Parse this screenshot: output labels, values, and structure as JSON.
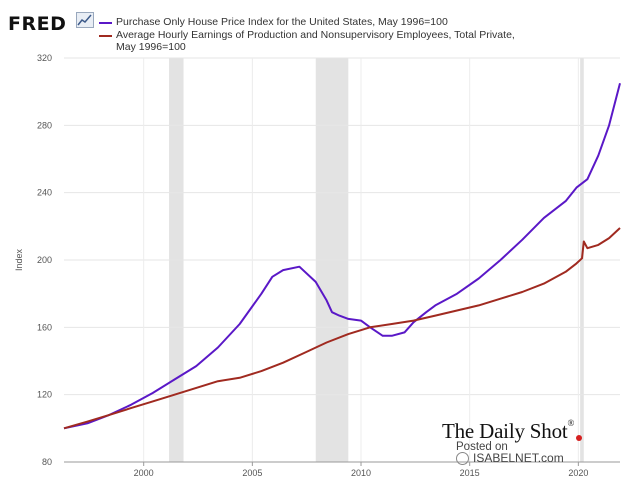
{
  "header": {
    "logo_text": "FRED",
    "logo_icon": "trend-line-icon"
  },
  "legend": [
    {
      "label": "Purchase Only House Price Index for the United States, May 1996=100",
      "color": "#5a18c7"
    },
    {
      "label": "Average Hourly Earnings of Production and Nonsupervisory Employees, Total Private,",
      "label2": "May 1996=100",
      "color": "#a02a20"
    }
  ],
  "watermark": {
    "brand": "The Daily Shot",
    "registered": "®",
    "posted_on": "Posted on",
    "site": "ISABELNET.com",
    "globe_icon": "globe-icon"
  },
  "chart_data": {
    "type": "line",
    "ylabel": "Index",
    "ylim": [
      80,
      320
    ],
    "yticks": [
      80,
      120,
      160,
      200,
      240,
      280,
      320
    ],
    "xlim": [
      "1996-05",
      "2021-12"
    ],
    "xticks": [
      "2000",
      "2005",
      "2010",
      "2015",
      "2020"
    ],
    "grid": true,
    "recessions": [
      [
        "2001-03",
        "2001-11"
      ],
      [
        "2007-12",
        "2009-06"
      ],
      [
        "2020-02",
        "2020-04"
      ]
    ],
    "series": [
      {
        "name": "Purchase Only House Price Index for the United States, May 1996=100",
        "color": "#5a18c7",
        "x": [
          "1996-05",
          "1997-06",
          "1998-06",
          "1999-06",
          "2000-06",
          "2001-06",
          "2002-06",
          "2003-06",
          "2004-06",
          "2005-06",
          "2005-12",
          "2006-06",
          "2007-03",
          "2007-12",
          "2008-06",
          "2008-09",
          "2009-01",
          "2009-06",
          "2010-01",
          "2010-06",
          "2011-01",
          "2011-06",
          "2012-01",
          "2012-06",
          "2013-01",
          "2013-06",
          "2014-06",
          "2015-06",
          "2016-06",
          "2017-06",
          "2018-06",
          "2019-06",
          "2019-12",
          "2020-06",
          "2020-12",
          "2021-06",
          "2021-12"
        ],
        "y": [
          100,
          103,
          108,
          114,
          121,
          129,
          137,
          148,
          162,
          180,
          190,
          194,
          196,
          187,
          176,
          169,
          167,
          165,
          164,
          160,
          155,
          155,
          157,
          163,
          169,
          173,
          180,
          189,
          200,
          212,
          225,
          235,
          243,
          248,
          262,
          280,
          305
        ]
      },
      {
        "name": "Average Hourly Earnings of Production and Nonsupervisory Employees, Total Private, May 1996=100",
        "color": "#a02a20",
        "x": [
          "1996-05",
          "1997-06",
          "1998-06",
          "1999-06",
          "2000-06",
          "2001-06",
          "2002-06",
          "2003-06",
          "2004-06",
          "2005-06",
          "2006-06",
          "2007-06",
          "2008-06",
          "2009-06",
          "2010-06",
          "2011-06",
          "2012-06",
          "2013-06",
          "2014-06",
          "2015-06",
          "2016-06",
          "2017-06",
          "2018-06",
          "2019-06",
          "2019-12",
          "2020-03",
          "2020-04",
          "2020-06",
          "2020-12",
          "2021-06",
          "2021-12"
        ],
        "y": [
          100,
          104,
          108,
          112,
          116,
          120,
          124,
          128,
          130,
          134,
          139,
          145,
          151,
          156,
          160,
          162,
          164,
          167,
          170,
          173,
          177,
          181,
          186,
          193,
          198,
          201,
          211,
          207,
          209,
          213,
          219
        ]
      }
    ]
  }
}
